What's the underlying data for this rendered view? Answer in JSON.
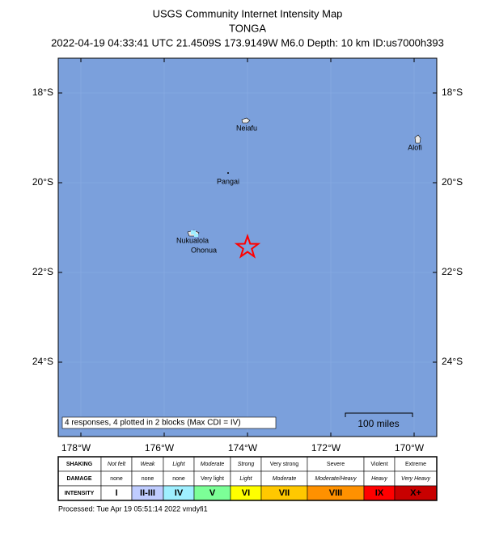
{
  "header": {
    "title": "USGS Community Internet Intensity Map",
    "region": "TONGA",
    "event": "2022-04-19 04:33:41 UTC 21.4509S 173.9149W M6.0 Depth: 10 km ID:us7000h393"
  },
  "map": {
    "lat_ticks": [
      "18°S",
      "20°S",
      "22°S",
      "24°S"
    ],
    "lon_ticks": [
      "178°W",
      "176°W",
      "174°W",
      "172°W",
      "170°W"
    ],
    "places": [
      "Neiafu",
      "Alofi",
      "Pangai",
      "Nukualola",
      "Ohonua"
    ],
    "summary": "4 responses, 4 plotted in 2 blocks (Max CDI = IV)",
    "scale": "100 miles"
  },
  "legend": {
    "rows": [
      {
        "label": "SHAKING",
        "cells": [
          "Not felt",
          "Weak",
          "Light",
          "Moderate",
          "Strong",
          "Very strong",
          "Severe",
          "Violent",
          "Extreme"
        ]
      },
      {
        "label": "DAMAGE",
        "cells": [
          "none",
          "none",
          "none",
          "Very light",
          "Light",
          "Moderate",
          "Moderate/Heavy",
          "Heavy",
          "Very Heavy"
        ]
      },
      {
        "label": "INTENSITY",
        "cells": [
          "I",
          "II-III",
          "IV",
          "V",
          "VI",
          "VII",
          "VIII",
          "IX",
          "X+"
        ]
      }
    ],
    "colors": [
      "#ffffff",
      "#bfccff",
      "#9fefff",
      "#7cff97",
      "#ffff00",
      "#ffc800",
      "#ff9100",
      "#ff0000",
      "#c80000"
    ]
  },
  "footer": "Processed: Tue Apr 19 05:51:14 2022 vmdyfi1"
}
